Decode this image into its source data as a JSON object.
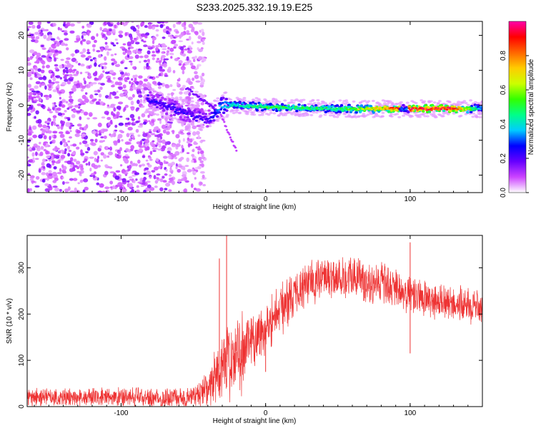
{
  "title": "S233.2025.332.19.19.E25",
  "chart_data": [
    {
      "type": "heatmap",
      "xlabel": "Height of straight line (km)",
      "ylabel": "Frequency (Hz)",
      "xlim": [
        -165,
        150
      ],
      "ylim": [
        -25,
        24
      ],
      "xticks": [
        -100,
        0,
        100
      ],
      "yticks": [
        -20,
        -10,
        0,
        10,
        20
      ],
      "colorbar": {
        "label": "Normalized spectral amplitude",
        "range": [
          0,
          1
        ],
        "ticks": [
          0.0,
          0.2,
          0.4,
          0.6,
          0.8
        ],
        "tick_labels": [
          "0.0",
          "0.2",
          "0.4",
          "0.6",
          "0.8"
        ],
        "colors": [
          "#ffffff",
          "#cc44ff",
          "#6600ff",
          "#0000ff",
          "#00ccff",
          "#00ff88",
          "#33ff00",
          "#ccff00",
          "#ffcc00",
          "#ff6600",
          "#ff0000",
          "#ff00aa"
        ]
      },
      "band": {
        "description_points": [
          {
            "x": -80,
            "f": 1.5,
            "amp": 0.22
          },
          {
            "x": -60,
            "f": -1.5,
            "amp": 0.22
          },
          {
            "x": -40,
            "f": -4,
            "amp": 0.2
          },
          {
            "x": -30,
            "f": 0,
            "amp": 0.35
          },
          {
            "x": -20,
            "f": 0,
            "amp": 0.4
          },
          {
            "x": 0,
            "f": -0.5,
            "amp": 0.5
          },
          {
            "x": 50,
            "f": -1,
            "amp": 0.45
          },
          {
            "x": 100,
            "f": -1,
            "amp": 0.9
          },
          {
            "x": 130,
            "f": -1,
            "amp": 0.9
          },
          {
            "x": 150,
            "f": -1,
            "amp": 0.3
          }
        ],
        "diagonal_trace": [
          {
            "x": -55,
            "f": 5
          },
          {
            "x": -32,
            "f": -2
          },
          {
            "x": -20,
            "f": -13
          }
        ]
      },
      "noise_region": {
        "x_from": -165,
        "x_to": -50
      }
    },
    {
      "type": "line",
      "xlabel": "Height of straight line (km)",
      "ylabel": "SNR (10 * v/v)",
      "xlim": [
        -165,
        150
      ],
      "ylim": [
        0,
        370
      ],
      "xticks": [
        -100,
        0,
        100
      ],
      "yticks": [
        0,
        100,
        200,
        300
      ],
      "color": "#ee3333",
      "envelope": [
        {
          "x": -165,
          "mean": 20,
          "spread": 20
        },
        {
          "x": -50,
          "mean": 20,
          "spread": 25
        },
        {
          "x": -40,
          "mean": 40,
          "spread": 40
        },
        {
          "x": -30,
          "mean": 90,
          "spread": 80
        },
        {
          "x": -20,
          "mean": 110,
          "spread": 100
        },
        {
          "x": -10,
          "mean": 140,
          "spread": 70
        },
        {
          "x": 0,
          "mean": 170,
          "spread": 60
        },
        {
          "x": 10,
          "mean": 210,
          "spread": 60
        },
        {
          "x": 25,
          "mean": 260,
          "spread": 50
        },
        {
          "x": 40,
          "mean": 280,
          "spread": 50
        },
        {
          "x": 60,
          "mean": 280,
          "spread": 50
        },
        {
          "x": 80,
          "mean": 265,
          "spread": 50
        },
        {
          "x": 100,
          "mean": 240,
          "spread": 45
        },
        {
          "x": 120,
          "mean": 225,
          "spread": 40
        },
        {
          "x": 150,
          "mean": 215,
          "spread": 40
        }
      ],
      "spikes": [
        {
          "x": -27,
          "value": 370
        },
        {
          "x": -32,
          "value": 320
        },
        {
          "x": 100,
          "value": 115
        },
        {
          "x": 100,
          "value": 355
        },
        {
          "x": 0,
          "value": 75
        }
      ]
    }
  ]
}
